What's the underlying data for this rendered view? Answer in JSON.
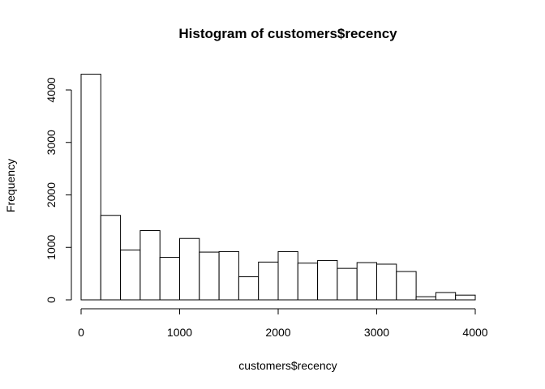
{
  "chart_data": {
    "type": "bar",
    "title": "Histogram of customers$recency",
    "xlabel": "customers$recency",
    "ylabel": "Frequency",
    "bin_edges": [
      0,
      200,
      400,
      600,
      800,
      1000,
      1200,
      1400,
      1600,
      1800,
      2000,
      2200,
      2400,
      2600,
      2800,
      3000,
      3200,
      3400,
      3600,
      3800,
      4000
    ],
    "values": [
      4300,
      1610,
      950,
      1320,
      810,
      1170,
      910,
      920,
      440,
      720,
      920,
      700,
      750,
      600,
      710,
      680,
      540,
      60,
      140,
      90
    ],
    "xlim": [
      0,
      4200
    ],
    "ylim": [
      0,
      4300
    ],
    "xticks": [
      0,
      1000,
      2000,
      3000,
      4000
    ],
    "xtick_labels": [
      "0",
      "1000",
      "2000",
      "3000",
      "4000"
    ],
    "yticks": [
      0,
      1000,
      2000,
      3000,
      4000
    ],
    "ytick_labels": [
      "0",
      "1000",
      "2000",
      "3000",
      "4000"
    ],
    "grid": false,
    "legend": "none",
    "bar_fill": "#ffffff",
    "bar_stroke": "#000000"
  }
}
